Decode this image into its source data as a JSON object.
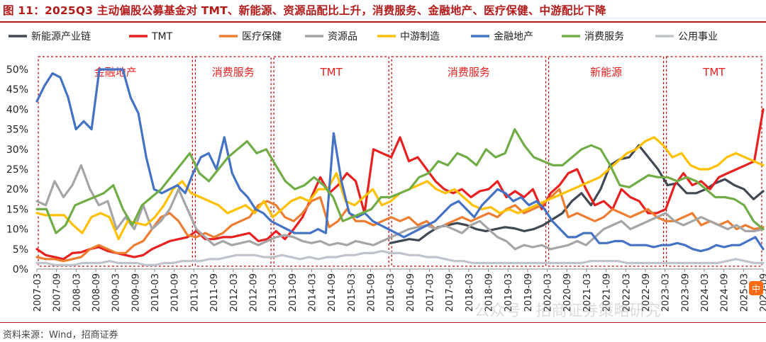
{
  "figure": {
    "title": "图 11：2025Q3 主动偏股公募基金对 TMT、新能源、资源品配比上升，消费服务、金融地产、医疗保健、中游配比下降",
    "source": "资料来源：Wind，招商证券"
  },
  "chart_data": {
    "type": "line",
    "title": "2025Q3 主动偏股公募基金对 TMT、新能源、资源品配比上升，消费服务、金融地产、医疗保健、中游配比下降",
    "xlabel": "",
    "ylabel": "",
    "ylim": [
      0,
      50
    ],
    "yticks": [
      "0%",
      "5%",
      "10%",
      "15%",
      "20%",
      "25%",
      "30%",
      "35%",
      "40%",
      "45%",
      "50%"
    ],
    "xticks": [
      "2007-03",
      "2007-09",
      "2008-03",
      "2008-09",
      "2009-03",
      "2009-09",
      "2010-03",
      "2010-09",
      "2011-03",
      "2011-09",
      "2012-03",
      "2012-09",
      "2013-03",
      "2013-09",
      "2014-03",
      "2014-09",
      "2015-03",
      "2015-09",
      "2016-03",
      "2016-09",
      "2017-03",
      "2017-09",
      "2018-03",
      "2018-09",
      "2019-03",
      "2019-09",
      "2020-03",
      "2020-09",
      "2021-03",
      "2021-09",
      "2022-03",
      "2022-09",
      "2023-03",
      "2023-09",
      "2024-03",
      "2024-09",
      "2025-03",
      "2025-09"
    ],
    "x_start": "2007Q1",
    "x_end": "2025Q3",
    "legend_position": "top",
    "grid": false,
    "regions": [
      {
        "label": "金融地产",
        "start": "2007Q1",
        "end": "2010Q4"
      },
      {
        "label": "消费服务",
        "start": "2011Q1",
        "end": "2012Q4"
      },
      {
        "label": "TMT",
        "start": "2013Q1",
        "end": "2015Q4"
      },
      {
        "label": "消费服务",
        "start": "2016Q1",
        "end": "2019Q4"
      },
      {
        "label": "新能源",
        "start": "2020Q1",
        "end": "2022Q4"
      },
      {
        "label": "TMT",
        "start": "2023Q1",
        "end": "2025Q3"
      }
    ],
    "series": [
      {
        "name": "新能源产业链",
        "color": "#404853",
        "start": "2016Q1",
        "values": [
          6.5,
          7,
          7.5,
          7.2,
          9,
          10.5,
          11,
          11.5,
          11,
          10,
          9.5,
          10,
          10.5,
          10.2,
          9.5,
          10,
          11,
          12.5,
          14,
          17,
          19,
          16,
          20,
          26,
          27.5,
          28,
          31,
          28,
          25,
          21,
          21.5,
          19,
          19,
          20,
          21.5,
          22.5,
          21,
          20,
          17.5,
          19.5
        ]
      },
      {
        "name": "TMT",
        "color": "#e8201f",
        "start": "2007Q1",
        "values": [
          5,
          3.5,
          3,
          2.5,
          4,
          4.2,
          5,
          5.5,
          4.5,
          4,
          3.5,
          3,
          3.5,
          5,
          6,
          7,
          7.5,
          8,
          9.5,
          7.5,
          7.5,
          8,
          8,
          8.5,
          9,
          7,
          7.5,
          9.5,
          7.5,
          10,
          13,
          18,
          23,
          19,
          21,
          24,
          22,
          14,
          30,
          29,
          28,
          33,
          27,
          28,
          25,
          22,
          20,
          19,
          20,
          18,
          19.5,
          20,
          22,
          18,
          19.5,
          18,
          20,
          15,
          19,
          21,
          24,
          25,
          20,
          16,
          17,
          15,
          20,
          18,
          17,
          14,
          14,
          15,
          21,
          24,
          21,
          22,
          20,
          23,
          24,
          25,
          26,
          27,
          40
        ]
      },
      {
        "name": "医疗保健",
        "color": "#ed7d31",
        "start": "2007Q1",
        "values": [
          3,
          2.5,
          2.5,
          2,
          2.5,
          3,
          5,
          6,
          5,
          4,
          4,
          6,
          7,
          10,
          13,
          14,
          12,
          8.5,
          8,
          9,
          8,
          9,
          11,
          12,
          13,
          16,
          17,
          16,
          13,
          12,
          14,
          17,
          18,
          10.5,
          12,
          15,
          12,
          12,
          11,
          12,
          13,
          12,
          13,
          11,
          12,
          10,
          11,
          12,
          13,
          12,
          13,
          14,
          13,
          15,
          16,
          14,
          15,
          16,
          18,
          20,
          13,
          14,
          13,
          12,
          13,
          15,
          14,
          13,
          14,
          15,
          13,
          12,
          12,
          13,
          14,
          11,
          12,
          11,
          12,
          10,
          11,
          10,
          10.5
        ]
      },
      {
        "name": "资源品",
        "color": "#a5a5a5",
        "start": "2007Q1",
        "values": [
          17,
          16,
          22,
          18,
          21,
          26,
          20,
          16,
          17,
          10,
          13,
          10,
          16,
          10,
          12,
          15,
          20,
          15,
          10,
          8,
          6,
          7,
          6,
          6.5,
          7,
          6,
          7,
          8,
          8.5,
          8,
          7,
          6.5,
          7,
          6,
          6.5,
          6,
          7,
          6.5,
          6,
          7,
          8,
          9,
          10,
          10.5,
          11,
          10,
          11,
          10,
          9,
          11,
          12,
          10,
          8,
          7,
          5,
          6,
          5.5,
          6,
          5,
          5.5,
          6,
          7,
          6,
          8,
          10,
          11,
          12,
          10,
          11,
          12,
          13,
          14,
          12,
          11,
          12,
          13,
          12,
          11,
          10,
          11,
          9.5,
          9.5,
          10
        ]
      },
      {
        "name": "中游制造",
        "color": "#ffc000",
        "start": "2007Q1",
        "values": [
          14,
          13.5,
          13.5,
          13.5,
          11,
          9,
          13,
          14,
          13,
          7.5,
          12,
          11.5,
          11,
          13,
          16,
          20,
          22,
          19,
          18,
          17,
          16,
          14,
          15,
          16,
          14,
          17,
          13,
          15,
          17,
          18,
          17,
          20,
          20,
          24,
          17,
          16,
          18,
          20,
          16,
          17,
          19,
          20,
          21,
          22,
          20,
          19,
          20,
          18,
          16,
          15,
          15.5,
          14,
          15,
          14,
          15,
          16,
          17,
          18,
          19,
          20,
          21,
          22,
          23,
          25,
          27,
          29,
          30,
          32,
          33,
          31,
          28,
          29,
          26,
          25,
          25,
          26,
          28,
          29,
          28,
          27,
          26
        ]
      },
      {
        "name": "金融地产",
        "color": "#4472c4",
        "start": "2007Q1",
        "values": [
          42,
          46,
          49,
          48,
          43,
          35,
          37,
          35,
          50,
          50,
          50,
          50,
          43,
          39,
          28,
          20,
          19,
          20,
          21,
          19,
          24,
          28,
          29,
          25,
          33,
          24,
          20,
          18,
          15,
          14,
          12,
          11,
          10,
          9,
          9,
          9,
          10,
          9,
          34,
          22,
          14,
          13,
          14,
          12,
          11,
          10,
          9,
          8,
          9,
          10,
          11,
          12,
          14,
          16,
          17,
          15,
          13,
          16,
          18,
          20,
          19,
          17,
          18,
          16,
          17,
          15,
          12,
          10,
          8,
          8,
          9,
          9,
          6.5,
          6.5,
          7,
          7,
          6,
          6,
          6,
          5.5,
          6,
          6,
          6.5,
          6,
          5,
          4.5,
          5,
          6,
          5.5,
          6,
          6,
          7,
          8,
          5
        ]
      },
      {
        "name": "消费服务",
        "color": "#70ad47",
        "start": "2007Q1",
        "values": [
          15,
          15,
          9,
          11,
          16,
          17,
          18,
          19,
          21,
          15,
          11,
          16,
          18,
          20,
          23,
          26,
          29,
          24,
          22,
          25,
          28,
          30,
          32,
          29,
          30,
          26,
          22,
          20,
          21,
          23,
          21,
          18,
          12,
          13,
          14,
          15,
          18,
          18,
          19,
          20,
          23,
          24,
          27,
          26,
          29,
          28,
          26,
          30,
          28,
          29,
          35,
          31,
          28,
          27,
          26,
          26,
          28,
          30,
          31,
          30,
          26,
          21,
          20.5,
          22,
          23.5,
          23,
          23,
          22,
          23,
          22,
          20,
          18,
          18,
          17.5,
          16,
          12,
          10
        ]
      },
      {
        "name": "公用事业",
        "color": "#bfc4cc",
        "start": "2007Q1",
        "values": [
          1.5,
          1.5,
          1,
          1,
          1,
          1.5,
          1.5,
          1.5,
          2,
          1.5,
          1.5,
          1.5,
          1,
          1,
          1.5,
          1.5,
          2,
          2,
          2,
          2.5,
          2.5,
          3,
          3.5,
          3.5,
          3.5,
          3,
          3,
          3.5,
          3,
          2.5,
          3,
          2.5,
          3,
          3,
          3.5,
          3.5,
          4,
          4,
          4.5,
          4,
          4,
          3.5,
          3.5,
          3,
          3,
          2.5,
          2,
          2,
          1.5,
          1.5,
          1.5,
          1.5,
          1.5,
          1.5,
          1.5,
          1.5,
          1.5,
          1.5,
          1.5,
          1.5,
          1.5,
          2,
          2,
          2,
          2,
          1.5,
          1.5,
          1.5,
          1.5,
          1.5,
          1.5,
          1.5,
          1.5,
          1.5,
          1.5,
          1.5,
          2,
          2.5,
          2,
          1.5,
          1.5
        ]
      }
    ]
  },
  "watermark": {
    "text": "公众号 · 招商证券策略研究",
    "badge_text": "中"
  }
}
